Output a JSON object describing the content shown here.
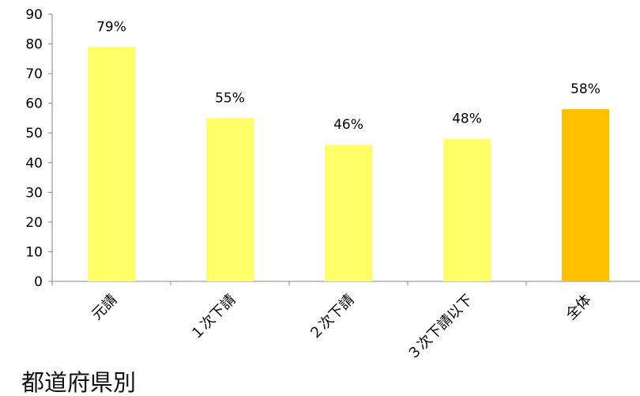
{
  "chart_data": {
    "type": "bar",
    "categories": [
      "元請",
      "１次下請",
      "２次下請",
      "３次下請以下",
      "全体"
    ],
    "values": [
      79,
      55,
      46,
      48,
      58
    ],
    "data_labels": [
      "79%",
      "55%",
      "46%",
      "48%",
      "58%"
    ],
    "ylim": [
      0,
      90
    ],
    "yticks": [
      0,
      10,
      20,
      30,
      40,
      50,
      60,
      70,
      80,
      90
    ],
    "grid": false,
    "legend": "none",
    "colors": {
      "bar": "#ffff66",
      "highlight_bar": "#ffc000",
      "axis": "#868686",
      "text": "#000000"
    },
    "highlight_category": "全体"
  },
  "caption": "都道府県別"
}
